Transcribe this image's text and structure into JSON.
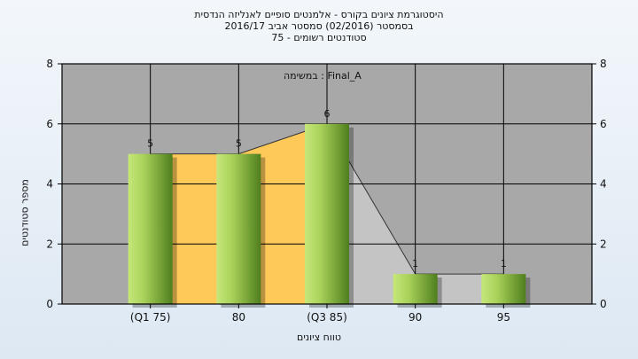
{
  "chart_data": {
    "type": "bar",
    "title_lines": [
      "היסטוגרמת ציונים בקורס - אלמנטים סופיים לאנליזה הנדסית",
      "בסמסטר  (02/2016)  סמסטר אביב 2016/17",
      "סטודנטים רשומים - 75"
    ],
    "annotation": "במשימה : Final_A",
    "xlabel": "טווח ציונים",
    "ylabel": "מספר סטודנטים",
    "categories": [
      "(Q1 75)",
      "80",
      "(Q3 85)",
      "90",
      "95"
    ],
    "values": [
      5,
      5,
      6,
      1,
      1
    ],
    "data_labels": [
      "5",
      "5",
      "6",
      "1",
      "1"
    ],
    "ylim": [
      0,
      8
    ],
    "yticks": [
      0,
      2,
      4,
      6,
      8
    ],
    "grid": true,
    "colors": {
      "plot_bg": "#a8a8a8",
      "bar_light": "#c6e77a",
      "bar_dark": "#4f7e1d",
      "area_iqr": "#ffc95a",
      "area_rest": "#c4c4c4",
      "line": "#333333"
    }
  }
}
